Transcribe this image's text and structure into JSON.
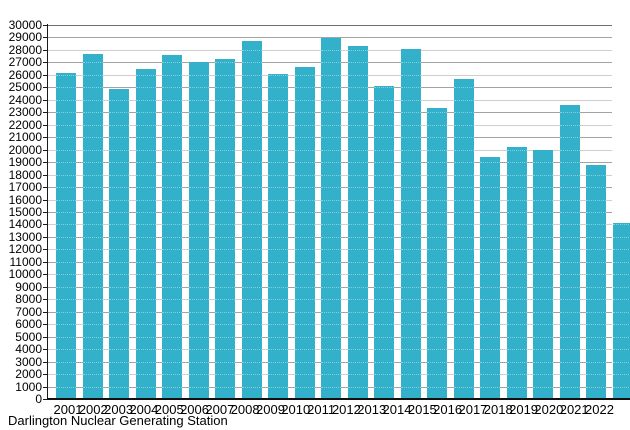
{
  "caption": "Darlington Nuclear Generating Station",
  "colors": {
    "bar": "#33b1ca",
    "grid_minor": "#cfcfcf",
    "grid_major": "#a3a3a3",
    "grid_top": "#6e6e6e",
    "axis": "#111111",
    "background": "#ffffff"
  },
  "chart_data": {
    "type": "bar",
    "title": "Darlington Nuclear Generating Station",
    "categories": [
      2001,
      2002,
      2003,
      2004,
      2005,
      2006,
      2007,
      2008,
      2009,
      2010,
      2011,
      2012,
      2013,
      2014,
      2015,
      2016,
      2017,
      2018,
      2019,
      2020,
      2021,
      2022
    ],
    "values": [
      26150,
      27650,
      24900,
      26500,
      27600,
      27000,
      27250,
      28750,
      26100,
      26600,
      28950,
      28300,
      25100,
      28050,
      23350,
      25700,
      19450,
      20200,
      20000,
      23550,
      18750,
      14100
    ],
    "xlabel": "",
    "ylabel": "",
    "ylim": [
      0,
      30000
    ],
    "ytick_interval": 1000,
    "grid": true,
    "legend": "none",
    "bar_color": "#33b1ca"
  }
}
